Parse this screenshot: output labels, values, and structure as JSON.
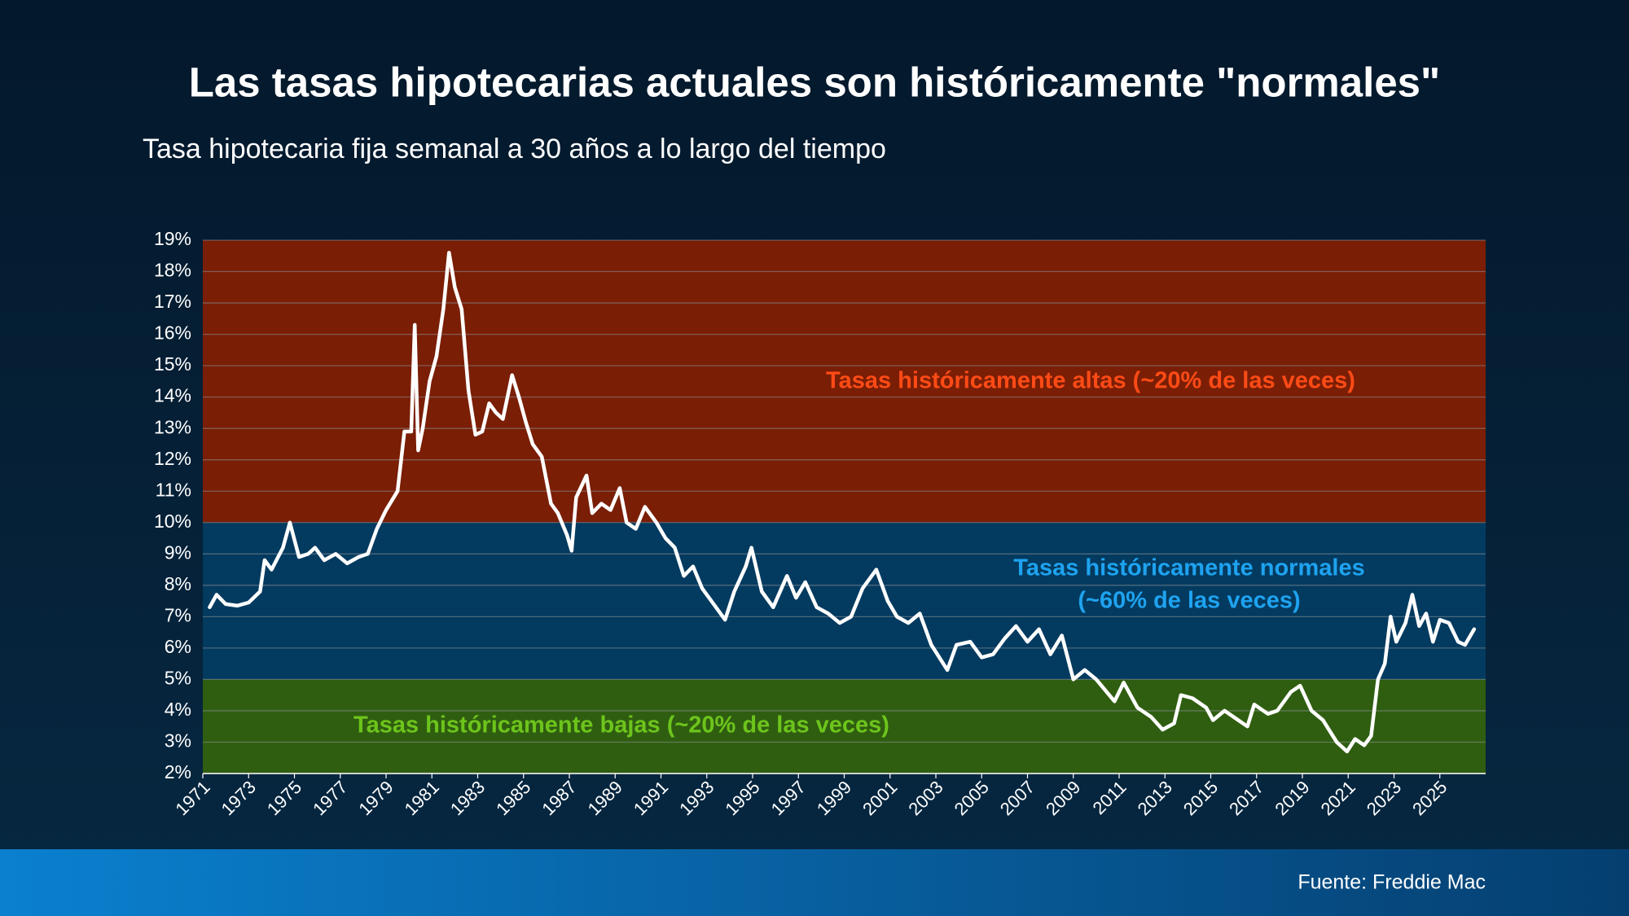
{
  "chart_data": {
    "type": "line",
    "title": "Las tasas hipotecarias actuales son históricamente \"normales\"",
    "subtitle": "Tasa hipotecaria fija semanal a 30 años a lo largo del tiempo",
    "source": "Fuente: Freddie Mac",
    "color": "#ffffff",
    "x": [
      1971.3,
      1971.6,
      1972,
      1972.5,
      1973,
      1973.5,
      1973.7,
      1974,
      1974.5,
      1974.8,
      1975.2,
      1975.6,
      1975.9,
      1976.3,
      1976.8,
      1977.3,
      1977.8,
      1978.2,
      1978.6,
      1979,
      1979.5,
      1979.8,
      1980.1,
      1980.25,
      1980.4,
      1980.6,
      1980.9,
      1981.2,
      1981.5,
      1981.75,
      1982,
      1982.3,
      1982.6,
      1982.9,
      1983.2,
      1983.5,
      1983.8,
      1984.1,
      1984.5,
      1984.8,
      1985.1,
      1985.4,
      1985.8,
      1986.2,
      1986.5,
      1986.9,
      1987.1,
      1987.3,
      1987.75,
      1988,
      1988.4,
      1988.8,
      1989.2,
      1989.5,
      1989.9,
      1990.3,
      1990.8,
      1991.2,
      1991.6,
      1992,
      1992.4,
      1992.8,
      1993.3,
      1993.8,
      1994.2,
      1994.7,
      1994.95,
      1995.4,
      1995.9,
      1996.5,
      1996.9,
      1997.3,
      1997.8,
      1998.3,
      1998.8,
      1999.3,
      1999.8,
      2000.4,
      2000.9,
      2001.3,
      2001.8,
      2002.3,
      2002.8,
      2003.5,
      2003.9,
      2004.5,
      2005,
      2005.5,
      2006,
      2006.5,
      2007,
      2007.5,
      2008,
      2008.5,
      2009,
      2009.5,
      2010,
      2010.8,
      2011.2,
      2011.8,
      2012.4,
      2012.9,
      2013.4,
      2013.7,
      2014.2,
      2014.8,
      2015.1,
      2015.6,
      2016.2,
      2016.6,
      2016.9,
      2017.5,
      2017.9,
      2018.5,
      2018.9,
      2019.4,
      2019.9,
      2020.5,
      2020.95,
      2021.3,
      2021.7,
      2022.0,
      2022.3,
      2022.6,
      2022.85,
      2023.1,
      2023.5,
      2023.8,
      2024.1,
      2024.4,
      2024.7,
      2025.0,
      2025.4,
      2025.8,
      2026.1,
      2026.5
    ],
    "values": [
      7.3,
      7.7,
      7.4,
      7.35,
      7.45,
      7.8,
      8.8,
      8.5,
      9.2,
      10.0,
      8.9,
      9.0,
      9.2,
      8.8,
      9.0,
      8.7,
      8.9,
      9.0,
      9.8,
      10.4,
      11.0,
      12.9,
      12.9,
      16.3,
      12.3,
      13.0,
      14.5,
      15.3,
      16.8,
      18.6,
      17.5,
      16.8,
      14.2,
      12.8,
      12.9,
      13.8,
      13.5,
      13.3,
      14.7,
      14.0,
      13.2,
      12.5,
      12.1,
      10.6,
      10.3,
      9.6,
      9.1,
      10.8,
      11.5,
      10.3,
      10.6,
      10.4,
      11.1,
      10.0,
      9.8,
      10.5,
      10.0,
      9.5,
      9.2,
      8.3,
      8.6,
      7.9,
      7.4,
      6.9,
      7.8,
      8.6,
      9.2,
      7.8,
      7.3,
      8.3,
      7.6,
      8.1,
      7.3,
      7.1,
      6.8,
      7.0,
      7.9,
      8.5,
      7.5,
      7.0,
      6.8,
      7.1,
      6.1,
      5.3,
      6.1,
      6.2,
      5.7,
      5.8,
      6.3,
      6.7,
      6.2,
      6.6,
      5.8,
      6.4,
      5.0,
      5.3,
      5.0,
      4.3,
      4.9,
      4.1,
      3.8,
      3.4,
      3.6,
      4.5,
      4.4,
      4.1,
      3.7,
      4.0,
      3.7,
      3.5,
      4.2,
      3.9,
      4.0,
      4.6,
      4.8,
      4.0,
      3.7,
      3.0,
      2.7,
      3.1,
      2.9,
      3.2,
      5.0,
      5.5,
      7.0,
      6.2,
      6.8,
      7.7,
      6.7,
      7.1,
      6.2,
      6.9,
      6.8,
      6.2,
      6.1,
      6.6
    ],
    "xlim": [
      1971,
      2027
    ],
    "xticks": [
      1971,
      1973,
      1975,
      1977,
      1979,
      1981,
      1983,
      1985,
      1987,
      1989,
      1991,
      1993,
      1995,
      1997,
      1999,
      2001,
      2003,
      2005,
      2007,
      2009,
      2011,
      2013,
      2015,
      2017,
      2019,
      2021,
      2023,
      2025
    ],
    "ylim": [
      2,
      19
    ],
    "yticks": [
      {
        "value": 2,
        "label": "2%"
      },
      {
        "value": 3,
        "label": "3%"
      },
      {
        "value": 4,
        "label": "4%"
      },
      {
        "value": 5,
        "label": "5%"
      },
      {
        "value": 6,
        "label": "6%"
      },
      {
        "value": 7,
        "label": "7%"
      },
      {
        "value": 8,
        "label": "8%"
      },
      {
        "value": 9,
        "label": "9%"
      },
      {
        "value": 10,
        "label": "10%"
      },
      {
        "value": 11,
        "label": "11%"
      },
      {
        "value": 12,
        "label": "12%"
      },
      {
        "value": 13,
        "label": "13%"
      },
      {
        "value": 14,
        "label": "14%"
      },
      {
        "value": 15,
        "label": "15%"
      },
      {
        "value": 16,
        "label": "16%"
      },
      {
        "value": 17,
        "label": "17%"
      },
      {
        "value": 18,
        "label": "18%"
      },
      {
        "value": 19,
        "label": "19%"
      }
    ],
    "grid": true,
    "bands": [
      {
        "from": 10,
        "to": 19,
        "color": "#7a1e06",
        "text_color": "#ff4b16",
        "label": [
          "Tasas históricamente altas (~20% de las veces)"
        ]
      },
      {
        "from": 5,
        "to": 10,
        "color": "#033a5f",
        "text_color": "#1ea3f0",
        "label": [
          "Tasas históricamente normales",
          "(~60% de las veces)"
        ]
      },
      {
        "from": 2,
        "to": 5,
        "color": "#2f5e10",
        "text_color": "#6dc41c",
        "label": [
          "Tasas históricamente bajas (~20% de las veces)"
        ]
      }
    ]
  }
}
